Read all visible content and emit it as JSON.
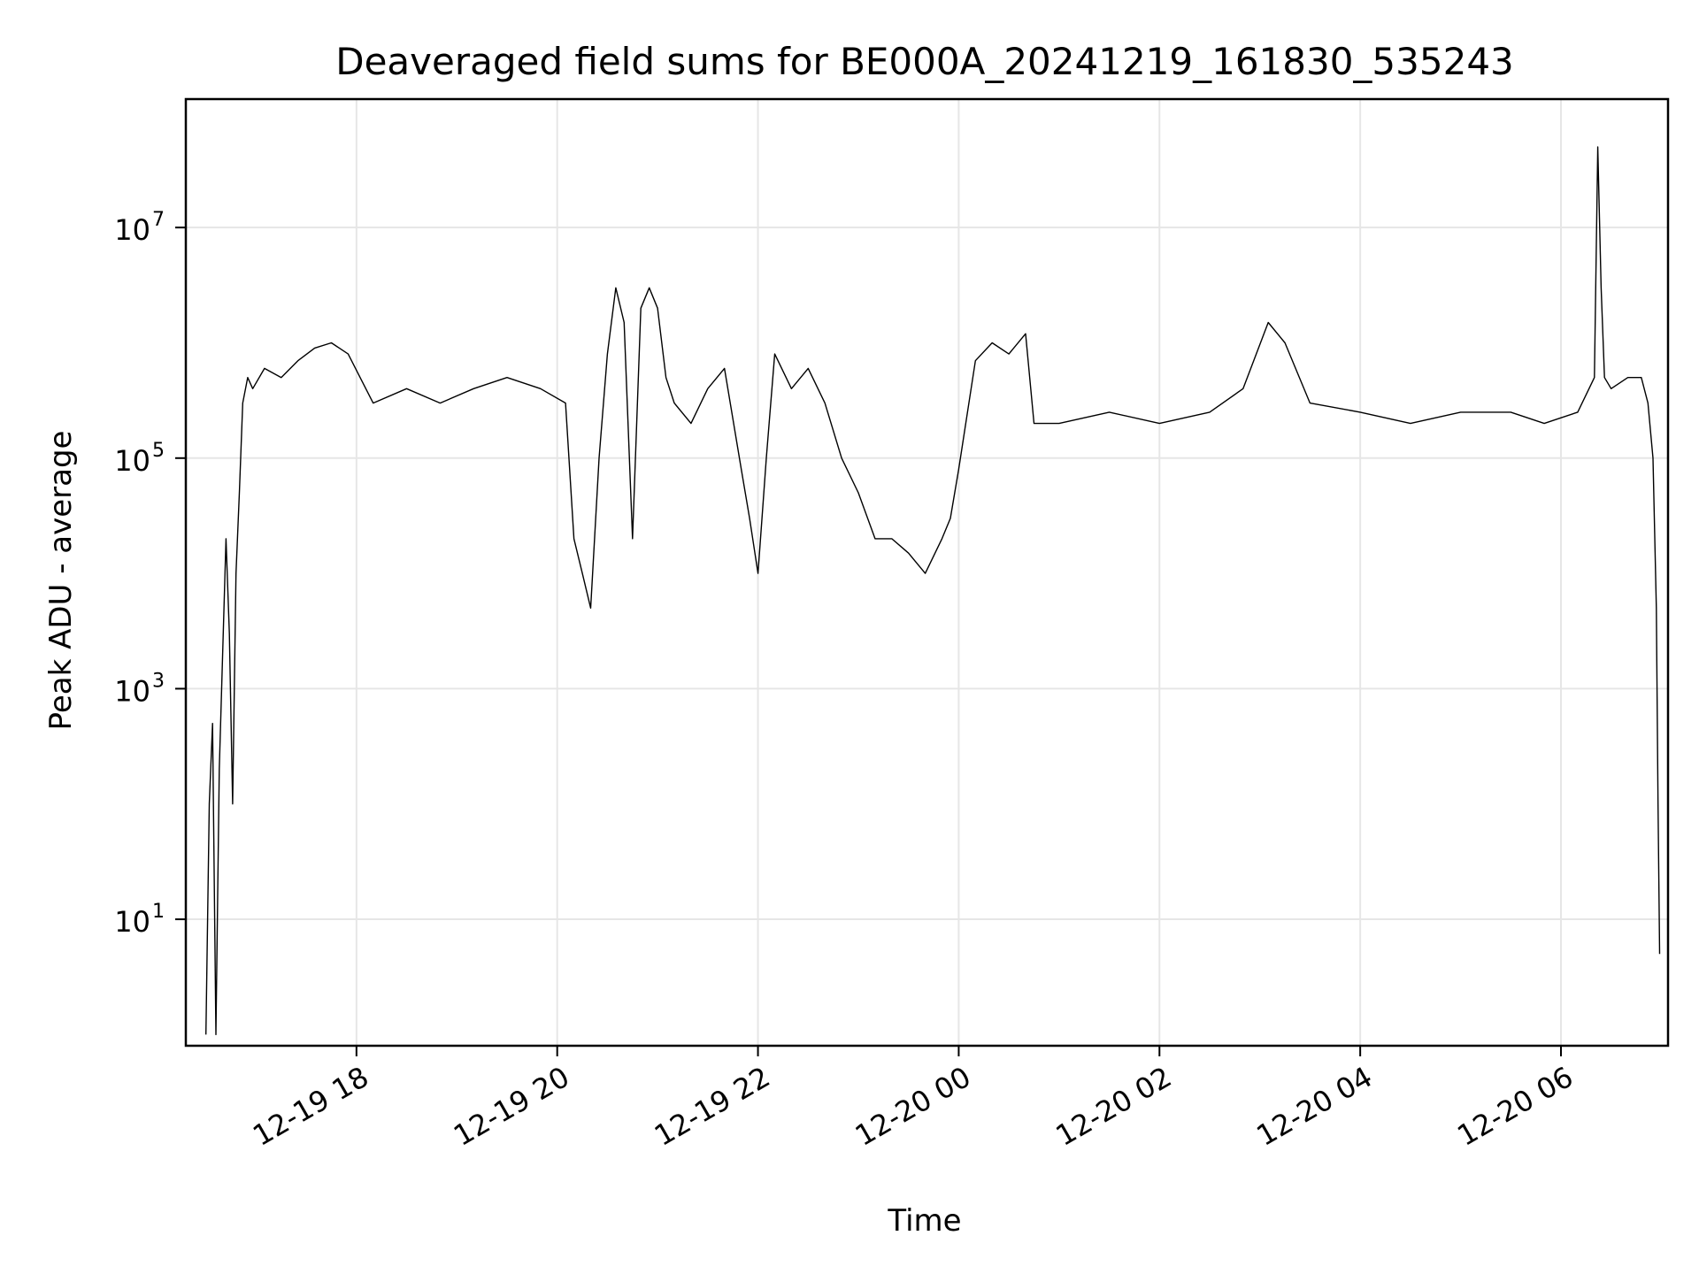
{
  "chart_data": {
    "type": "line",
    "title": "Deaveraged field sums for BE000A_20241219_161830_535243",
    "xlabel": "Time",
    "ylabel": "Peak ADU - average",
    "yscale": "log",
    "ylim": [
      0.8,
      130000000
    ],
    "xlim": [
      "2024-12-19 16:18",
      "2024-12-20 07:04"
    ],
    "grid": true,
    "line_color": "#000000",
    "grid_color": "#e6e6e6",
    "x_ticks": [
      {
        "value": "2024-12-19 18:00",
        "label": "12-19 18"
      },
      {
        "value": "2024-12-19 20:00",
        "label": "12-19 20"
      },
      {
        "value": "2024-12-19 22:00",
        "label": "12-19 22"
      },
      {
        "value": "2024-12-20 00:00",
        "label": "12-20 00"
      },
      {
        "value": "2024-12-20 02:00",
        "label": "12-20 02"
      },
      {
        "value": "2024-12-20 04:00",
        "label": "12-20 04"
      },
      {
        "value": "2024-12-20 06:00",
        "label": "12-20 06"
      }
    ],
    "y_ticks": [
      {
        "value": 10,
        "base": "10",
        "exp": "1"
      },
      {
        "value": 1000,
        "base": "10",
        "exp": "3"
      },
      {
        "value": 100000,
        "base": "10",
        "exp": "5"
      },
      {
        "value": 10000000,
        "base": "10",
        "exp": "7"
      }
    ],
    "series": [
      {
        "x": [
          "2024-12-19 16:30",
          "2024-12-19 16:32",
          "2024-12-19 16:34",
          "2024-12-19 16:36",
          "2024-12-19 16:38",
          "2024-12-19 16:40",
          "2024-12-19 16:42",
          "2024-12-19 16:44",
          "2024-12-19 16:46",
          "2024-12-19 16:48",
          "2024-12-19 16:50",
          "2024-12-19 16:52",
          "2024-12-19 16:55",
          "2024-12-19 16:58",
          "2024-12-19 17:05",
          "2024-12-19 17:15",
          "2024-12-19 17:25",
          "2024-12-19 17:35",
          "2024-12-19 17:45",
          "2024-12-19 17:55",
          "2024-12-19 18:10",
          "2024-12-19 18:30",
          "2024-12-19 18:50",
          "2024-12-19 19:10",
          "2024-12-19 19:30",
          "2024-12-19 19:50",
          "2024-12-19 20:05",
          "2024-12-19 20:10",
          "2024-12-19 20:15",
          "2024-12-19 20:20",
          "2024-12-19 20:25",
          "2024-12-19 20:30",
          "2024-12-19 20:35",
          "2024-12-19 20:40",
          "2024-12-19 20:45",
          "2024-12-19 20:50",
          "2024-12-19 20:55",
          "2024-12-19 21:00",
          "2024-12-19 21:05",
          "2024-12-19 21:10",
          "2024-12-19 21:20",
          "2024-12-19 21:30",
          "2024-12-19 21:40",
          "2024-12-19 21:50",
          "2024-12-19 21:55",
          "2024-12-19 22:00",
          "2024-12-19 22:05",
          "2024-12-19 22:10",
          "2024-12-19 22:20",
          "2024-12-19 22:30",
          "2024-12-19 22:40",
          "2024-12-19 22:50",
          "2024-12-19 23:00",
          "2024-12-19 23:10",
          "2024-12-19 23:20",
          "2024-12-19 23:30",
          "2024-12-19 23:40",
          "2024-12-19 23:50",
          "2024-12-19 23:55",
          "2024-12-20 00:00",
          "2024-12-20 00:10",
          "2024-12-20 00:20",
          "2024-12-20 00:30",
          "2024-12-20 00:40",
          "2024-12-20 00:45",
          "2024-12-20 01:00",
          "2024-12-20 01:30",
          "2024-12-20 02:00",
          "2024-12-20 02:30",
          "2024-12-20 02:50",
          "2024-12-20 03:05",
          "2024-12-20 03:15",
          "2024-12-20 03:30",
          "2024-12-20 04:00",
          "2024-12-20 04:30",
          "2024-12-20 05:00",
          "2024-12-20 05:30",
          "2024-12-20 05:50",
          "2024-12-20 06:10",
          "2024-12-20 06:20",
          "2024-12-20 06:22",
          "2024-12-20 06:24",
          "2024-12-20 06:26",
          "2024-12-20 06:30",
          "2024-12-20 06:40",
          "2024-12-20 06:48",
          "2024-12-20 06:52",
          "2024-12-20 06:55",
          "2024-12-20 06:57",
          "2024-12-20 06:58",
          "2024-12-20 06:59"
        ],
        "values": [
          1,
          100,
          500,
          1,
          200,
          2000,
          20000,
          3000,
          100,
          10000,
          50000,
          300000,
          500000,
          400000,
          600000,
          500000,
          700000,
          900000,
          1000000,
          800000,
          300000,
          400000,
          300000,
          400000,
          500000,
          400000,
          300000,
          20000,
          10000,
          5000,
          100000,
          800000,
          3000000,
          1500000,
          20000,
          2000000,
          3000000,
          2000000,
          500000,
          300000,
          200000,
          400000,
          600000,
          80000,
          30000,
          10000,
          100000,
          800000,
          400000,
          600000,
          300000,
          100000,
          50000,
          20000,
          20000,
          15000,
          10000,
          20000,
          30000,
          80000,
          700000,
          1000000,
          800000,
          1200000,
          200000,
          200000,
          250000,
          200000,
          250000,
          400000,
          1500000,
          1000000,
          300000,
          250000,
          200000,
          250000,
          250000,
          200000,
          250000,
          500000,
          50000000,
          3000000,
          500000,
          400000,
          500000,
          500000,
          300000,
          100000,
          5000,
          100,
          5
        ]
      }
    ]
  }
}
